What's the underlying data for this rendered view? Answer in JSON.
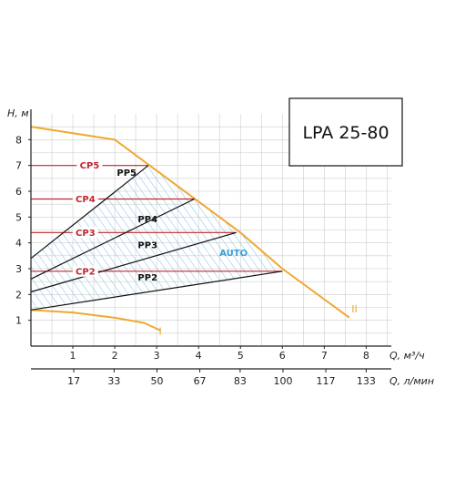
{
  "chart_data": {
    "type": "line",
    "title": "LPA 25-80",
    "ylabel": "H, м",
    "xlabel": "Q, м³/ч",
    "x2label": "Q, л/мин",
    "xlim": [
      0,
      8.6
    ],
    "ylim": [
      0,
      9
    ],
    "x_ticks": [
      "1",
      "2",
      "3",
      "4",
      "5",
      "6",
      "7",
      "8"
    ],
    "x_ticks_values": [
      1,
      2,
      3,
      4,
      5,
      6,
      7,
      8
    ],
    "x2_ticks": [
      "17",
      "33",
      "50",
      "67",
      "83",
      "100",
      "117",
      "133"
    ],
    "x2_ticks_values": [
      17,
      33,
      50,
      67,
      83,
      100,
      117,
      133
    ],
    "y_ticks": [
      "1",
      "2",
      "3",
      "4",
      "5",
      "6",
      "7",
      "8"
    ],
    "y_ticks_values": [
      1,
      2,
      3,
      4,
      5,
      6,
      7,
      8
    ],
    "grid": true,
    "colors": {
      "orange": "#f0a830",
      "red": "#c0272d",
      "hatch": "#7cc4ea",
      "line": "#111111",
      "grid": "#cccccc"
    },
    "series": [
      {
        "name": "II",
        "kind": "max",
        "points": [
          [
            0,
            8.5
          ],
          [
            2,
            8.0
          ],
          [
            3,
            6.8
          ],
          [
            4,
            5.6
          ],
          [
            5,
            4.4
          ],
          [
            6,
            3.0
          ],
          [
            7.6,
            1.1
          ]
        ]
      },
      {
        "name": "I",
        "kind": "min",
        "points": [
          [
            0,
            1.4
          ],
          [
            1,
            1.3
          ],
          [
            2,
            1.1
          ],
          [
            2.7,
            0.9
          ],
          [
            3.1,
            0.6
          ]
        ]
      },
      {
        "name": "CP5",
        "kind": "cp",
        "points": [
          [
            0,
            7.0
          ],
          [
            2.8,
            7.0
          ]
        ]
      },
      {
        "name": "CP4",
        "kind": "cp",
        "points": [
          [
            0,
            5.7
          ],
          [
            3.9,
            5.7
          ]
        ]
      },
      {
        "name": "CP3",
        "kind": "cp",
        "points": [
          [
            0,
            4.4
          ],
          [
            4.9,
            4.4
          ]
        ]
      },
      {
        "name": "CP2",
        "kind": "cp",
        "points": [
          [
            0,
            2.9
          ],
          [
            6.0,
            2.9
          ]
        ]
      },
      {
        "name": "PP5",
        "kind": "pp",
        "points": [
          [
            0,
            3.4
          ],
          [
            2.8,
            7.0
          ]
        ]
      },
      {
        "name": "PP4",
        "kind": "pp",
        "points": [
          [
            0,
            2.6
          ],
          [
            3.9,
            5.7
          ]
        ]
      },
      {
        "name": "PP3",
        "kind": "pp",
        "points": [
          [
            0,
            2.1
          ],
          [
            4.9,
            4.4
          ]
        ]
      },
      {
        "name": "PP2",
        "kind": "pp",
        "points": [
          [
            0,
            1.4
          ],
          [
            6.0,
            2.9
          ]
        ]
      }
    ],
    "auto_region": {
      "label": "AUTO",
      "points": [
        [
          0,
          1.4
        ],
        [
          6.0,
          2.9
        ],
        [
          5.0,
          4.4
        ],
        [
          4.0,
          5.6
        ],
        [
          3.0,
          6.8
        ],
        [
          2.8,
          7.0
        ],
        [
          0,
          3.4
        ]
      ]
    }
  }
}
